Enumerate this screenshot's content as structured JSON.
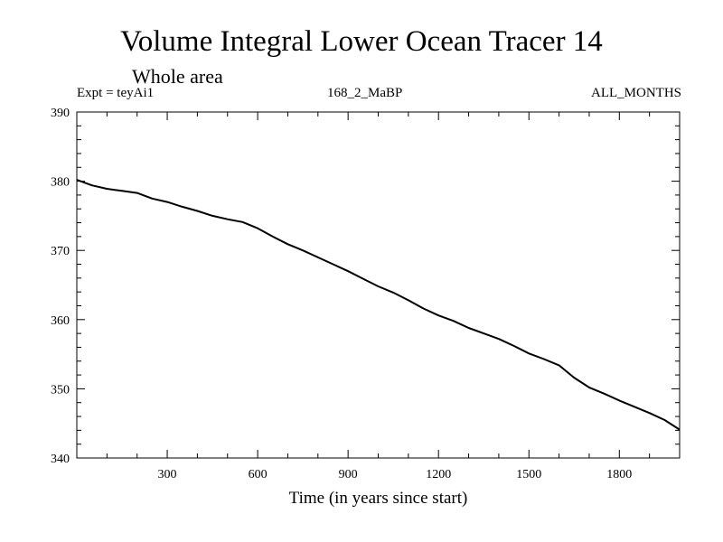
{
  "chart_data": {
    "type": "line",
    "title": "Volume Integral Lower Ocean Tracer 14",
    "subtitle": "Whole area",
    "annotations": {
      "experiment": "Expt = teyAi1",
      "run": "168_2_MaBP",
      "months": "ALL_MONTHS"
    },
    "xlabel": "Time (in years since start)",
    "ylabel": "",
    "xlim": [
      0,
      2000
    ],
    "ylim": [
      340,
      390
    ],
    "x_ticks": [
      300,
      600,
      900,
      1200,
      1500,
      1800
    ],
    "y_ticks": [
      340,
      350,
      360,
      370,
      380,
      390
    ],
    "series": [
      {
        "name": "Tracer 14",
        "x": [
          0,
          50,
          100,
          150,
          200,
          250,
          300,
          350,
          400,
          450,
          500,
          550,
          600,
          650,
          700,
          750,
          800,
          850,
          900,
          950,
          1000,
          1050,
          1100,
          1150,
          1200,
          1250,
          1300,
          1350,
          1400,
          1450,
          1500,
          1550,
          1600,
          1650,
          1700,
          1750,
          1800,
          1850,
          1900,
          1950,
          2000
        ],
        "values": [
          380.2,
          379.4,
          378.9,
          378.6,
          378.3,
          377.5,
          377.0,
          376.3,
          375.7,
          375.0,
          374.5,
          374.1,
          373.2,
          372.0,
          370.9,
          370.0,
          369.0,
          368.0,
          367.0,
          365.9,
          364.8,
          363.9,
          362.8,
          361.6,
          360.6,
          359.8,
          358.8,
          358.0,
          357.2,
          356.2,
          355.1,
          354.3,
          353.4,
          351.6,
          350.2,
          349.3,
          348.3,
          347.4,
          346.5,
          345.5,
          344.1
        ]
      }
    ]
  }
}
